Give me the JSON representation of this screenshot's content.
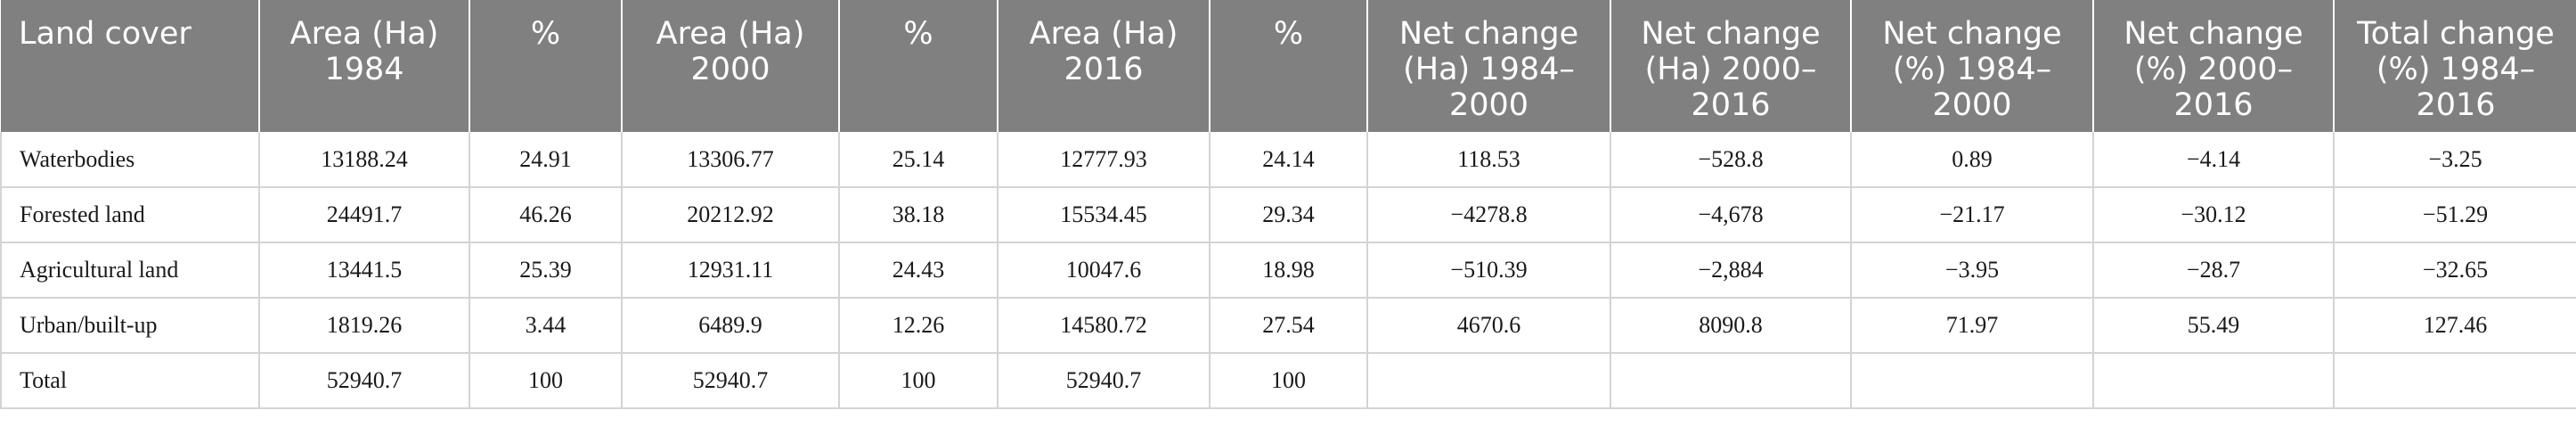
{
  "table": {
    "headers": [
      "Land cover",
      "Area (Ha)\n1984",
      "%",
      "Area (Ha)\n2000",
      "%",
      "Area (Ha)\n2016",
      "%",
      "Net change\n(Ha) 1984–\n2000",
      "Net change\n(Ha) 2000–\n2016",
      "Net change\n(%) 1984–\n2000",
      "Net change\n(%) 2000–\n2016",
      "Total change\n(%) 1984–\n2016"
    ],
    "rows": [
      [
        "Waterbodies",
        "13188.24",
        "24.91",
        "13306.77",
        "25.14",
        "12777.93",
        "24.14",
        "118.53",
        "−528.8",
        "0.89",
        "−4.14",
        "−3.25"
      ],
      [
        "Forested land",
        "24491.7",
        "46.26",
        "20212.92",
        "38.18",
        "15534.45",
        "29.34",
        "−4278.8",
        "−4,678",
        "−21.17",
        "−30.12",
        "−51.29"
      ],
      [
        "Agricultural land",
        "13441.5",
        "25.39",
        "12931.11",
        "24.43",
        "10047.6",
        "18.98",
        "−510.39",
        "−2,884",
        "−3.95",
        "−28.7",
        "−32.65"
      ],
      [
        "Urban/built-up",
        "1819.26",
        "3.44",
        "6489.9",
        "12.26",
        "14580.72",
        "27.54",
        "4670.6",
        "8090.8",
        "71.97",
        "55.49",
        "127.46"
      ],
      [
        "Total",
        "52940.7",
        "100",
        "52940.7",
        "100",
        "52940.7",
        "100",
        "",
        "",
        "",
        "",
        ""
      ]
    ]
  }
}
